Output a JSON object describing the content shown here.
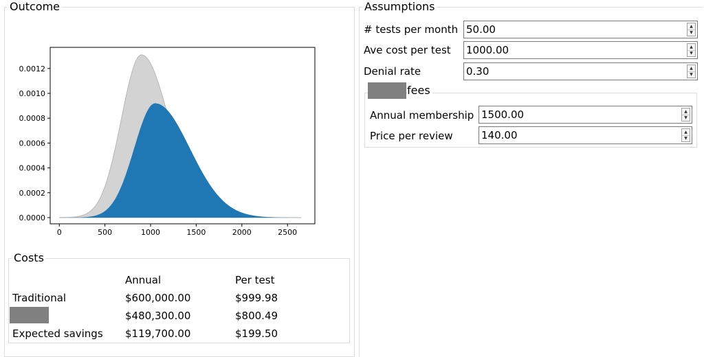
{
  "outcome": {
    "title": "Outcome",
    "chart_data": {
      "type": "area",
      "x_ticks": [
        0,
        500,
        1000,
        1500,
        2000,
        2500
      ],
      "y_ticks": [
        "0.0000",
        "0.0002",
        "0.0004",
        "0.0006",
        "0.0008",
        "0.0010",
        "0.0012"
      ],
      "xlim": [
        -100,
        2800
      ],
      "ylim": [
        -5e-05,
        0.00137
      ],
      "grid": false,
      "series": [
        {
          "color": "#d3d3d3",
          "edge_color": "#b8b8b8",
          "peak_x": 900,
          "peak_y": 0.00131,
          "left_spread": 220,
          "right_spread": 300
        },
        {
          "color": "#1f77b4",
          "peak_x": 1050,
          "peak_y": 0.00092,
          "left_spread": 230,
          "right_spread": 380
        }
      ]
    }
  },
  "costs": {
    "title": "Costs",
    "headers": [
      "Annual",
      "Per test"
    ],
    "rows": [
      {
        "label": "Traditional",
        "annual": "$600,000.00",
        "per_test": "$999.98"
      },
      {
        "label": "",
        "annual": "$480,300.00",
        "per_test": "$800.49"
      },
      {
        "label": "Expected savings",
        "annual": "$119,700.00",
        "per_test": "$199.50"
      }
    ]
  },
  "assumptions": {
    "title": "Assumptions",
    "fields": [
      {
        "label": "# tests per month",
        "value": "50.00"
      },
      {
        "label": "Ave cost per test",
        "value": "1000.00"
      },
      {
        "label": "Denial rate",
        "value": "0.30"
      }
    ],
    "fees": {
      "title": "fees",
      "fields": [
        {
          "label": "Annual membership",
          "value": "1500.00"
        },
        {
          "label": "Price per review",
          "value": "140.00"
        }
      ]
    }
  },
  "colors": {
    "accent": "#1f77b4",
    "redaction": "#808080"
  }
}
